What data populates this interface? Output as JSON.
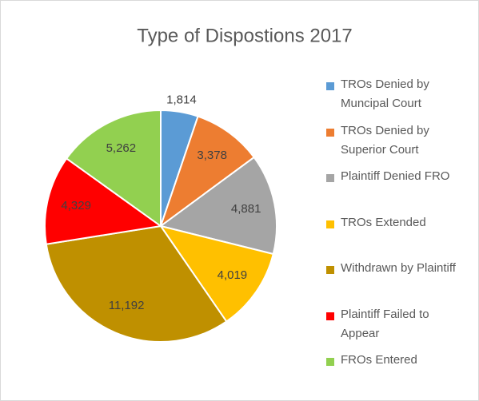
{
  "chart_data": {
    "type": "pie",
    "title": "Type of Dispostions 2017",
    "categories": [
      "TROs Denied by Muncipal Court",
      "TROs Denied by Superior Court",
      "Plaintiff Denied FRO",
      "TROs Extended",
      "Withdrawn by Plaintiff",
      "Plaintiff Failed to Appear",
      "FROs Entered"
    ],
    "values": [
      1814,
      3378,
      4881,
      4019,
      11192,
      4329,
      5262
    ],
    "value_labels": [
      "1,814",
      "3,378",
      "4,881",
      "4,019",
      "11,192",
      "4,329",
      "5,262"
    ],
    "colors": [
      "#5b9bd5",
      "#ed7d31",
      "#a5a5a5",
      "#ffc000",
      "#bf9000",
      "#ff0000",
      "#92d050"
    ],
    "legend": "right"
  }
}
